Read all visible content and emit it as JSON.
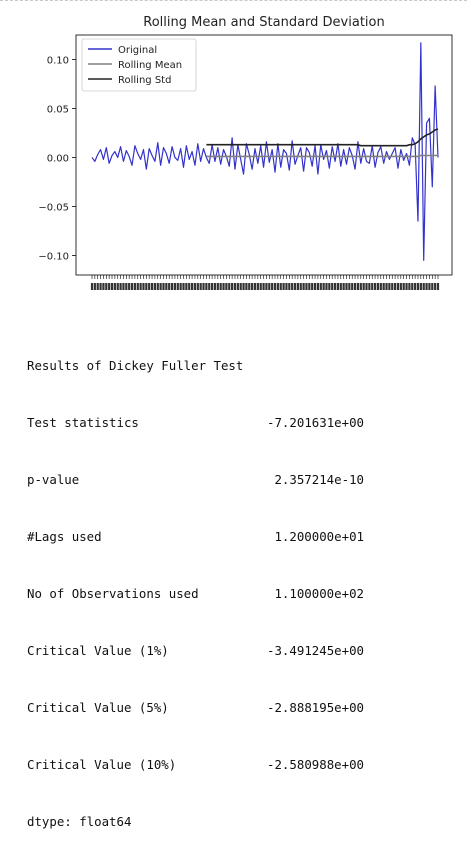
{
  "chart_data": {
    "type": "line",
    "title": "Rolling Mean and Standard Deviation",
    "xlabel": "",
    "ylabel": "",
    "ylim": [
      -0.12,
      0.125
    ],
    "y_ticks": [
      0.1,
      0.05,
      0.0,
      -0.05,
      -0.1
    ],
    "y_tick_labels": [
      "0.10",
      "0.05",
      "0.00",
      "−0.05",
      "−0.10"
    ],
    "x_tick_labels_note": "dense overlapping date labels",
    "grid": false,
    "legend_position": "top-left",
    "n": 122,
    "series": [
      {
        "name": "Original",
        "color": "#3333cc",
        "values": [
          0.0,
          -0.004,
          0.003,
          0.008,
          -0.002,
          0.01,
          -0.006,
          0.002,
          0.006,
          0.0,
          0.011,
          -0.004,
          0.007,
          0.001,
          -0.008,
          0.012,
          0.004,
          -0.002,
          0.008,
          -0.012,
          0.009,
          0.002,
          -0.004,
          0.015,
          -0.008,
          0.01,
          0.004,
          -0.006,
          0.011,
          0.0,
          -0.003,
          0.009,
          -0.01,
          0.012,
          -0.002,
          0.006,
          -0.008,
          0.014,
          -0.004,
          0.009,
          0.0,
          -0.006,
          0.013,
          -0.004,
          0.01,
          -0.007,
          0.008,
          0.001,
          -0.009,
          0.02,
          -0.012,
          0.013,
          -0.002,
          -0.017,
          0.014,
          0.003,
          -0.012,
          0.009,
          -0.006,
          0.012,
          -0.01,
          0.016,
          -0.005,
          0.008,
          -0.015,
          0.014,
          -0.01,
          0.008,
          0.004,
          -0.013,
          0.017,
          -0.007,
          0.002,
          0.01,
          -0.014,
          0.01,
          0.005,
          -0.009,
          0.012,
          -0.017,
          0.013,
          -0.002,
          0.007,
          -0.011,
          0.011,
          -0.004,
          0.014,
          -0.009,
          0.008,
          -0.007,
          0.01,
          0.002,
          -0.012,
          0.016,
          -0.006,
          0.009,
          -0.004,
          -0.006,
          0.012,
          -0.01,
          0.005,
          0.011,
          -0.006,
          0.006,
          -0.002,
          0.004,
          0.01,
          -0.011,
          0.008,
          -0.003,
          0.004,
          -0.008,
          0.02,
          0.013,
          -0.065,
          0.117,
          -0.105,
          0.035,
          0.04,
          -0.03,
          0.073,
          0.0
        ]
      },
      {
        "name": "Rolling Mean",
        "color": "#808080",
        "values": [
          null,
          null,
          null,
          null,
          null,
          null,
          null,
          null,
          null,
          null,
          null,
          null,
          null,
          null,
          null,
          null,
          null,
          null,
          null,
          null,
          null,
          null,
          null,
          null,
          null,
          null,
          null,
          null,
          null,
          null,
          null,
          null,
          null,
          null,
          null,
          null,
          null,
          null,
          null,
          null,
          0.001,
          0.001,
          0.001,
          0.001,
          0.001,
          0.001,
          0.001,
          0.001,
          0.001,
          0.001,
          0.001,
          0.001,
          0.001,
          0.001,
          0.001,
          0.001,
          0.001,
          0.001,
          0.001,
          0.001,
          0.001,
          0.001,
          0.001,
          0.001,
          0.001,
          0.001,
          0.001,
          0.001,
          0.001,
          0.001,
          0.001,
          0.001,
          0.001,
          0.001,
          0.001,
          0.001,
          0.001,
          0.001,
          0.001,
          0.001,
          0.001,
          0.001,
          0.001,
          0.001,
          0.001,
          0.001,
          0.001,
          0.001,
          0.001,
          0.001,
          0.001,
          0.001,
          0.001,
          0.001,
          0.001,
          0.001,
          0.001,
          0.001,
          0.001,
          0.001,
          0.001,
          0.001,
          0.001,
          0.001,
          0.001,
          0.001,
          0.001,
          0.001,
          0.001,
          0.001,
          0.001,
          0.001,
          0.001,
          0.001,
          0.001,
          0.002,
          0.002,
          0.002,
          0.002,
          0.002,
          0.002,
          0.002
        ]
      },
      {
        "name": "Rolling Std",
        "color": "#222222",
        "values": [
          null,
          null,
          null,
          null,
          null,
          null,
          null,
          null,
          null,
          null,
          null,
          null,
          null,
          null,
          null,
          null,
          null,
          null,
          null,
          null,
          null,
          null,
          null,
          null,
          null,
          null,
          null,
          null,
          null,
          null,
          null,
          null,
          null,
          null,
          null,
          null,
          null,
          null,
          null,
          null,
          0.013,
          0.013,
          0.013,
          0.013,
          0.013,
          0.013,
          0.013,
          0.013,
          0.013,
          0.013,
          0.013,
          0.013,
          0.013,
          0.013,
          0.013,
          0.013,
          0.013,
          0.013,
          0.013,
          0.013,
          0.013,
          0.013,
          0.013,
          0.013,
          0.013,
          0.013,
          0.013,
          0.013,
          0.013,
          0.013,
          0.013,
          0.013,
          0.013,
          0.013,
          0.013,
          0.013,
          0.013,
          0.013,
          0.013,
          0.013,
          0.013,
          0.013,
          0.013,
          0.013,
          0.013,
          0.013,
          0.013,
          0.013,
          0.013,
          0.013,
          0.013,
          0.013,
          0.013,
          0.013,
          0.012,
          0.012,
          0.012,
          0.012,
          0.012,
          0.012,
          0.012,
          0.012,
          0.012,
          0.012,
          0.012,
          0.012,
          0.012,
          0.012,
          0.012,
          0.012,
          0.012,
          0.013,
          0.013,
          0.014,
          0.016,
          0.019,
          0.021,
          0.023,
          0.024,
          0.026,
          0.028,
          0.029
        ]
      }
    ]
  },
  "output": {
    "heading": "Results of Dickey Fuller Test",
    "rows": [
      {
        "label": "Test statistics",
        "value": "-7.201631e+00"
      },
      {
        "label": "p-value",
        "value": "2.357214e-10"
      },
      {
        "label": "#Lags used",
        "value": "1.200000e+01"
      },
      {
        "label": "No of Observations used",
        "value": "1.100000e+02"
      },
      {
        "label": "Critical Value (1%)",
        "value": "-3.491245e+00"
      },
      {
        "label": "Critical Value (5%)",
        "value": "-2.888195e+00"
      },
      {
        "label": "Critical Value (10%)",
        "value": "-2.580988e+00"
      }
    ],
    "dtype": "dtype: float64"
  }
}
